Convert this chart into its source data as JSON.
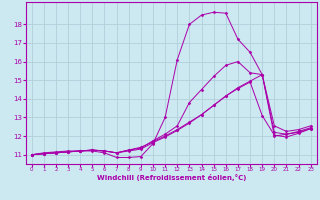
{
  "xlabel": "Windchill (Refroidissement éolien,°C)",
  "background_color": "#cce8f0",
  "grid_color": "#b0d0dc",
  "line_color": "#aa00aa",
  "xlim": [
    -0.5,
    23.5
  ],
  "ylim": [
    10.5,
    19.2
  ],
  "yticks": [
    11,
    12,
    13,
    14,
    15,
    16,
    17,
    18
  ],
  "xticks": [
    0,
    1,
    2,
    3,
    4,
    5,
    6,
    7,
    8,
    9,
    10,
    11,
    12,
    13,
    14,
    15,
    16,
    17,
    18,
    19,
    20,
    21,
    22,
    23
  ],
  "lines": [
    {
      "x": [
        0,
        1,
        2,
        3,
        4,
        5,
        6,
        7,
        8,
        9,
        10,
        11,
        12,
        13,
        14,
        15,
        16,
        17,
        18,
        19,
        20,
        21,
        22,
        23
      ],
      "y": [
        11.0,
        11.1,
        11.15,
        11.2,
        11.2,
        11.2,
        11.1,
        10.85,
        10.85,
        10.9,
        11.6,
        13.0,
        16.1,
        18.0,
        18.5,
        18.65,
        18.6,
        17.2,
        16.5,
        15.3,
        12.0,
        12.1,
        12.2,
        12.4
      ]
    },
    {
      "x": [
        0,
        1,
        2,
        3,
        4,
        5,
        6,
        7,
        8,
        9,
        10,
        11,
        12,
        13,
        14,
        15,
        16,
        17,
        18,
        19,
        20,
        21,
        22,
        23
      ],
      "y": [
        11.0,
        11.05,
        11.1,
        11.15,
        11.2,
        11.25,
        11.2,
        11.1,
        11.25,
        11.35,
        11.75,
        12.1,
        12.55,
        13.8,
        14.5,
        15.2,
        15.8,
        16.0,
        15.4,
        15.3,
        12.2,
        12.1,
        12.25,
        12.45
      ]
    },
    {
      "x": [
        0,
        1,
        2,
        3,
        4,
        5,
        6,
        7,
        8,
        9,
        10,
        11,
        12,
        13,
        14,
        15,
        16,
        17,
        18,
        19,
        20,
        21,
        22,
        23
      ],
      "y": [
        11.0,
        11.05,
        11.1,
        11.15,
        11.2,
        11.25,
        11.2,
        11.1,
        11.2,
        11.3,
        11.65,
        11.95,
        12.3,
        12.7,
        13.15,
        13.65,
        14.15,
        14.55,
        14.9,
        13.1,
        12.05,
        11.95,
        12.15,
        12.4
      ]
    },
    {
      "x": [
        0,
        1,
        2,
        3,
        4,
        5,
        6,
        7,
        8,
        9,
        10,
        11,
        12,
        13,
        14,
        15,
        16,
        17,
        18,
        19,
        20,
        21,
        22,
        23
      ],
      "y": [
        11.0,
        11.05,
        11.1,
        11.15,
        11.2,
        11.25,
        11.2,
        11.1,
        11.25,
        11.4,
        11.7,
        12.0,
        12.35,
        12.75,
        13.15,
        13.65,
        14.15,
        14.6,
        14.95,
        15.3,
        12.55,
        12.25,
        12.35,
        12.55
      ]
    }
  ]
}
